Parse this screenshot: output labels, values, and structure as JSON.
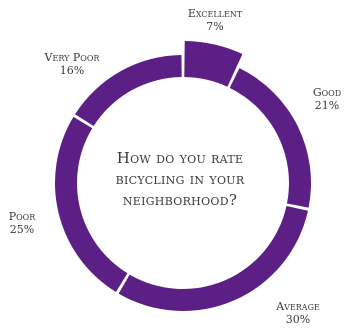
{
  "chart_data": {
    "type": "pie",
    "title": "How do you rate bicycling in your neighborhood?",
    "title_lines": [
      "How do you rate",
      "bicycling in your",
      "neighborhood?"
    ],
    "slices": [
      {
        "label": "Excellent",
        "value": 7,
        "display": "7%"
      },
      {
        "label": "Good",
        "value": 21,
        "display": "21%"
      },
      {
        "label": "Average",
        "value": 30,
        "display": "30%"
      },
      {
        "label": "Poor",
        "value": 25,
        "display": "25%"
      },
      {
        "label": "Very Poor",
        "value": 16,
        "display": "16%"
      }
    ],
    "style": "donut",
    "color": "#5b1f86",
    "gap_color": "#ffffff",
    "legend": "none",
    "highlighted_slice": "Excellent"
  }
}
